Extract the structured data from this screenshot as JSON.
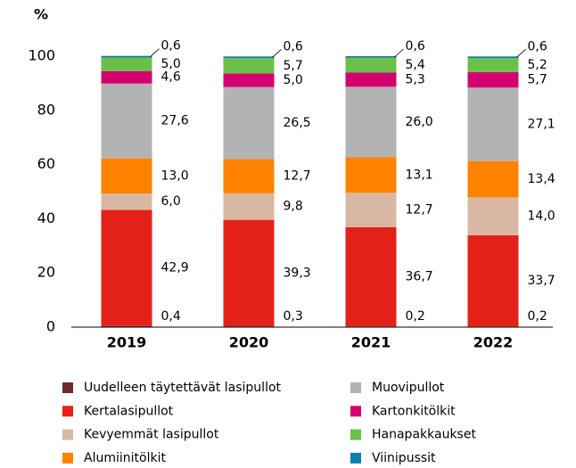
{
  "chart_data": {
    "type": "stacked_bar",
    "y_label": "%",
    "categories": [
      "2019",
      "2020",
      "2021",
      "2022"
    ],
    "ylim": [
      0,
      100
    ],
    "yticks": [
      0,
      20,
      40,
      60,
      80,
      100
    ],
    "legend": "bottom",
    "series": [
      {
        "name": "Uudelleen täytettävät lasipullot",
        "color": "#6b2e2a",
        "values": [
          0.4,
          0.3,
          0.2,
          0.2
        ],
        "value_labels": [
          "0,4",
          "0,3",
          "0,2",
          "0,2"
        ]
      },
      {
        "name": "Kertalasipullot",
        "color": "#e42119",
        "values": [
          42.9,
          39.3,
          36.7,
          33.7
        ],
        "value_labels": [
          "42,9",
          "39,3",
          "36,7",
          "33,7"
        ]
      },
      {
        "name": "Kevyemmät lasipullot",
        "color": "#d9b8a3",
        "values": [
          6.0,
          9.8,
          12.7,
          14.0
        ],
        "value_labels": [
          "6,0",
          "9,8",
          "12,7",
          "14,0"
        ]
      },
      {
        "name": "Alumiinitölkit",
        "color": "#ff8200",
        "values": [
          13.0,
          12.7,
          13.1,
          13.4
        ],
        "value_labels": [
          "13,0",
          "12,7",
          "13,1",
          "13,4"
        ]
      },
      {
        "name": "Muovipullot",
        "color": "#b3b3b3",
        "values": [
          27.6,
          26.5,
          26.0,
          27.1
        ],
        "value_labels": [
          "27,6",
          "26,5",
          "26,0",
          "27,1"
        ]
      },
      {
        "name": "Kartonkitölkit",
        "color": "#d4006f",
        "values": [
          4.6,
          5.0,
          5.3,
          5.7
        ],
        "value_labels": [
          "4,6",
          "5,0",
          "5,3",
          "5,7"
        ]
      },
      {
        "name": "Hanapakkaukset",
        "color": "#6cc04a",
        "values": [
          5.0,
          5.7,
          5.4,
          5.2
        ],
        "value_labels": [
          "5,0",
          "5,7",
          "5,4",
          "5,2"
        ]
      },
      {
        "name": "Viinipussit",
        "color": "#0a7fa8",
        "values": [
          0.6,
          0.6,
          0.6,
          0.6
        ],
        "value_labels": [
          "0,6",
          "0,6",
          "0,6",
          "0,6"
        ]
      }
    ]
  }
}
